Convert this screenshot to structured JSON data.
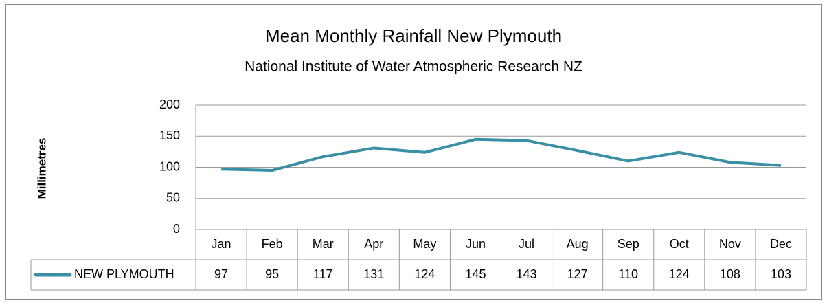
{
  "chart_data": {
    "type": "line",
    "title": "Mean Monthly Rainfall New Plymouth",
    "subtitle": "National Institute of Water Atmospheric Research NZ",
    "y_label": "Millimetres",
    "categories": [
      "Jan",
      "Feb",
      "Mar",
      "Apr",
      "May",
      "Jun",
      "Jul",
      "Aug",
      "Sep",
      "Oct",
      "Nov",
      "Dec"
    ],
    "series": [
      {
        "name": "NEW PLYMOUTH",
        "color": "#3a8fa6",
        "values": [
          97,
          95,
          117,
          131,
          124,
          145,
          143,
          127,
          110,
          124,
          108,
          103
        ]
      }
    ],
    "ylim": [
      0,
      200
    ],
    "yticks": [
      0,
      50,
      100,
      150,
      200
    ],
    "grid": true,
    "data_table": true
  }
}
